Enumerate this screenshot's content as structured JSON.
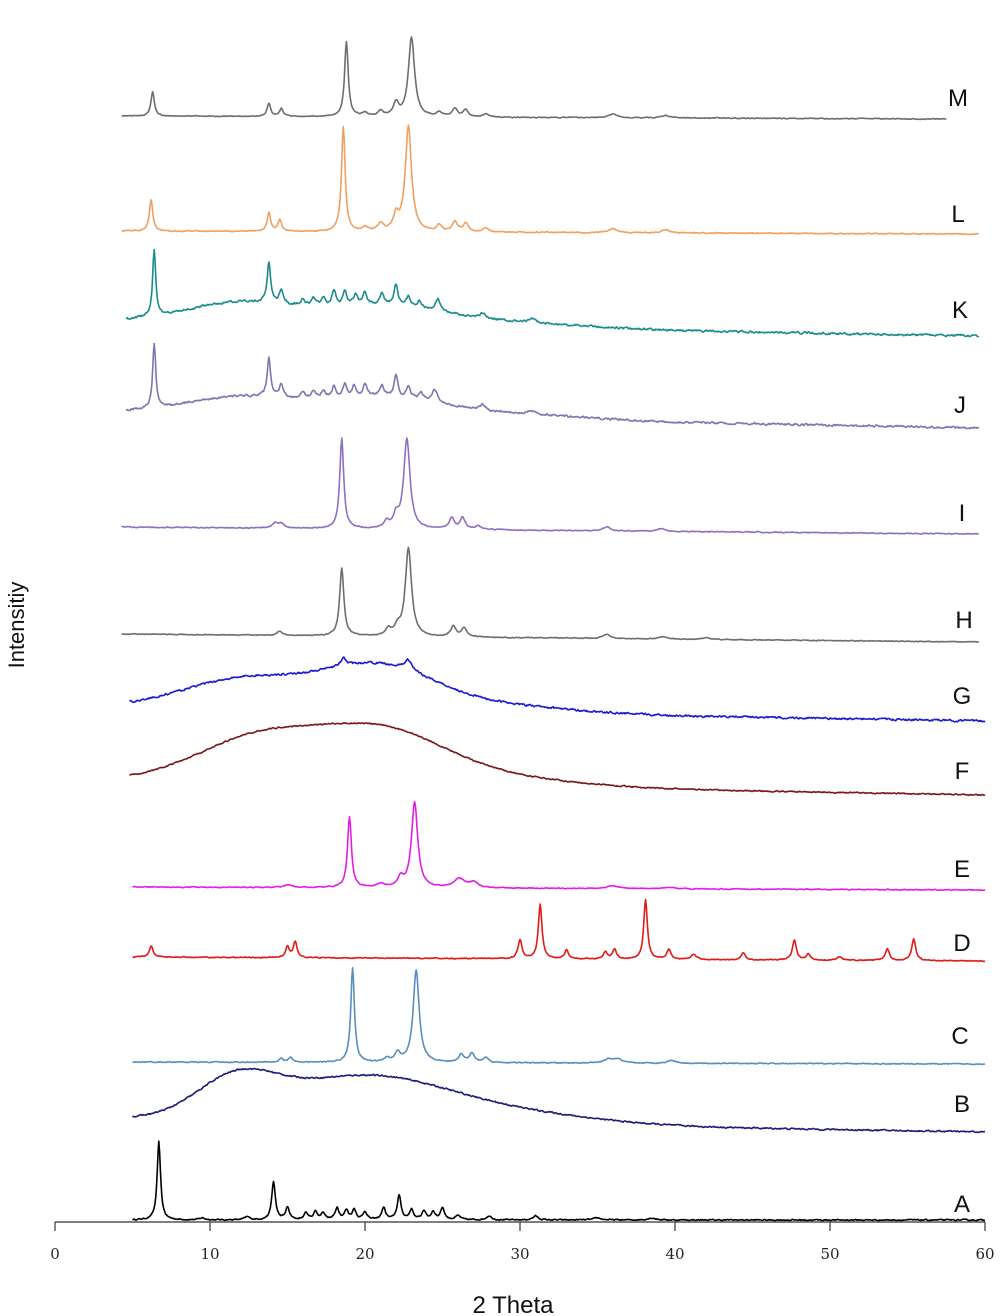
{
  "chart_data": {
    "type": "line",
    "title": "",
    "xlabel": "2 Theta",
    "ylabel": "Intensitiy",
    "xlim": [
      0,
      60
    ],
    "xticks": [
      "0",
      "10",
      "20",
      "30",
      "40",
      "50",
      "60"
    ],
    "grid": false,
    "legend": "none",
    "series": [
      {
        "name": "A",
        "color": "#000000",
        "baseline": "flat",
        "noise": 0.5,
        "bumps": [],
        "peaks": [
          [
            6.7,
            78,
            0.13
          ],
          [
            9.5,
            2,
            0.2
          ],
          [
            12.4,
            3,
            0.2
          ],
          [
            14.1,
            38,
            0.14
          ],
          [
            15.0,
            12,
            0.15
          ],
          [
            16.2,
            7,
            0.15
          ],
          [
            16.8,
            8,
            0.15
          ],
          [
            17.3,
            7,
            0.15
          ],
          [
            18.2,
            12,
            0.15
          ],
          [
            18.8,
            9,
            0.15
          ],
          [
            19.3,
            10,
            0.15
          ],
          [
            20.0,
            8,
            0.15
          ],
          [
            21.2,
            12,
            0.15
          ],
          [
            22.2,
            24,
            0.15
          ],
          [
            23.0,
            10,
            0.15
          ],
          [
            23.8,
            9,
            0.15
          ],
          [
            24.4,
            8,
            0.15
          ],
          [
            25.0,
            12,
            0.15
          ],
          [
            26.0,
            4,
            0.2
          ],
          [
            28.0,
            4,
            0.2
          ],
          [
            31.0,
            4,
            0.2
          ],
          [
            35.0,
            2,
            0.3
          ],
          [
            38.5,
            2,
            0.3
          ]
        ]
      },
      {
        "name": "B",
        "color": "#1c1c7a",
        "baseline": "sloped",
        "noise": 0.6,
        "peaks": [],
        "bumps": [
          [
            11.7,
            40,
            2.6
          ],
          [
            16.5,
            12,
            3.5
          ],
          [
            21.0,
            37,
            4.6
          ],
          [
            29.0,
            12,
            5.5
          ]
        ]
      },
      {
        "name": "C",
        "color": "#5b8dbf",
        "baseline": "flat",
        "noise": 0.4,
        "bumps": [],
        "peaks": [
          [
            14.6,
            4,
            0.15
          ],
          [
            15.2,
            5,
            0.15
          ],
          [
            19.2,
            95,
            0.14
          ],
          [
            21.4,
            4,
            0.2
          ],
          [
            22.1,
            9,
            0.2
          ],
          [
            23.3,
            92,
            0.23
          ],
          [
            26.2,
            8,
            0.2
          ],
          [
            26.9,
            9,
            0.2
          ],
          [
            27.8,
            5,
            0.2
          ],
          [
            35.7,
            4,
            0.3
          ],
          [
            36.3,
            4,
            0.3
          ],
          [
            39.8,
            3,
            0.3
          ]
        ]
      },
      {
        "name": "D",
        "color": "#e01919",
        "baseline": "flat",
        "noise": 0.4,
        "bumps": [],
        "peaks": [
          [
            6.2,
            11,
            0.14
          ],
          [
            15.0,
            11,
            0.14
          ],
          [
            15.5,
            16,
            0.14
          ],
          [
            30.0,
            19,
            0.15
          ],
          [
            31.3,
            55,
            0.14
          ],
          [
            33.0,
            9,
            0.15
          ],
          [
            35.5,
            7,
            0.15
          ],
          [
            36.1,
            10,
            0.15
          ],
          [
            38.1,
            60,
            0.14
          ],
          [
            39.6,
            10,
            0.15
          ],
          [
            41.2,
            5,
            0.2
          ],
          [
            44.4,
            7,
            0.15
          ],
          [
            47.7,
            20,
            0.15
          ],
          [
            48.6,
            6,
            0.15
          ],
          [
            50.6,
            3,
            0.2
          ],
          [
            53.7,
            12,
            0.15
          ],
          [
            55.4,
            22,
            0.15
          ]
        ]
      },
      {
        "name": "E",
        "color": "#e020e0",
        "baseline": "flat",
        "noise": 0.4,
        "bumps": [],
        "peaks": [
          [
            15.0,
            3,
            0.3
          ],
          [
            19.0,
            78,
            0.15
          ],
          [
            21.0,
            4,
            0.3
          ],
          [
            22.3,
            10,
            0.2
          ],
          [
            23.2,
            95,
            0.24
          ],
          [
            26.1,
            10,
            0.4
          ],
          [
            27.0,
            6,
            0.35
          ],
          [
            36.0,
            3,
            0.5
          ],
          [
            39.7,
            2,
            0.4
          ]
        ]
      },
      {
        "name": "F",
        "color": "#7a1818",
        "baseline": "sloped",
        "noise": 0.5,
        "peaks": [],
        "bumps": [
          [
            13.2,
            44,
            4.0
          ],
          [
            21.0,
            48,
            4.0
          ],
          [
            27.5,
            10,
            5.5
          ]
        ]
      },
      {
        "name": "G",
        "color": "#1a1ad0",
        "baseline": "sloped",
        "noise": 0.8,
        "peaks": [
          [
            18.6,
            8,
            0.2
          ],
          [
            22.8,
            10,
            0.3
          ]
        ],
        "bumps": [
          [
            12.3,
            30,
            4.0
          ],
          [
            20.8,
            42,
            3.6
          ],
          [
            28.0,
            8,
            5.0
          ]
        ]
      },
      {
        "name": "H",
        "color": "#6e6e6e",
        "baseline": "flat",
        "noise": 0.4,
        "bumps": [],
        "peaks": [
          [
            14.5,
            5,
            0.2
          ],
          [
            18.5,
            85,
            0.16
          ],
          [
            21.5,
            8,
            0.2
          ],
          [
            22.1,
            10,
            0.2
          ],
          [
            22.8,
            110,
            0.24
          ],
          [
            25.7,
            13,
            0.2
          ],
          [
            26.4,
            11,
            0.2
          ],
          [
            35.6,
            5,
            0.3
          ],
          [
            39.2,
            3,
            0.3
          ],
          [
            42.0,
            2,
            0.3
          ]
        ]
      },
      {
        "name": "I",
        "color": "#8e70c0",
        "baseline": "flat",
        "noise": 0.4,
        "bumps": [],
        "peaks": [
          [
            14.2,
            5,
            0.2
          ],
          [
            14.6,
            5,
            0.2
          ],
          [
            18.5,
            95,
            0.15
          ],
          [
            21.4,
            7,
            0.2
          ],
          [
            22.0,
            12,
            0.2
          ],
          [
            22.7,
            95,
            0.24
          ],
          [
            25.6,
            12,
            0.2
          ],
          [
            26.3,
            12,
            0.2
          ],
          [
            27.3,
            4,
            0.2
          ],
          [
            35.6,
            4,
            0.3
          ],
          [
            39.1,
            3,
            0.3
          ]
        ]
      },
      {
        "name": "J",
        "color": "#7a78ae",
        "baseline": "sloped",
        "noise": 1.0,
        "peaks": [
          [
            6.4,
            75,
            0.12
          ],
          [
            13.8,
            45,
            0.13
          ],
          [
            14.6,
            16,
            0.15
          ],
          [
            16.0,
            8,
            0.15
          ],
          [
            16.7,
            8,
            0.15
          ],
          [
            17.3,
            9,
            0.15
          ],
          [
            18.0,
            14,
            0.15
          ],
          [
            18.7,
            14,
            0.15
          ],
          [
            19.3,
            12,
            0.15
          ],
          [
            20.0,
            14,
            0.15
          ],
          [
            21.1,
            12,
            0.15
          ],
          [
            22.0,
            25,
            0.15
          ],
          [
            22.8,
            12,
            0.15
          ],
          [
            23.6,
            8,
            0.15
          ],
          [
            24.5,
            14,
            0.2
          ],
          [
            27.6,
            6,
            0.2
          ],
          [
            30.7,
            5,
            0.25
          ]
        ],
        "bumps": [
          [
            12.0,
            20,
            3.5
          ],
          [
            21.0,
            22,
            3.8
          ],
          [
            29.0,
            6,
            5.0
          ]
        ]
      },
      {
        "name": "K",
        "color": "#1a8c8c",
        "baseline": "sloped",
        "noise": 1.0,
        "peaks": [
          [
            6.4,
            78,
            0.12
          ],
          [
            13.8,
            48,
            0.13
          ],
          [
            14.6,
            16,
            0.15
          ],
          [
            16.0,
            8,
            0.15
          ],
          [
            16.7,
            9,
            0.15
          ],
          [
            17.3,
            10,
            0.15
          ],
          [
            18.0,
            18,
            0.15
          ],
          [
            18.7,
            16,
            0.15
          ],
          [
            19.4,
            12,
            0.15
          ],
          [
            20.0,
            14,
            0.15
          ],
          [
            21.1,
            12,
            0.15
          ],
          [
            22.0,
            24,
            0.15
          ],
          [
            22.8,
            12,
            0.15
          ],
          [
            23.5,
            8,
            0.15
          ],
          [
            24.7,
            14,
            0.2
          ],
          [
            27.6,
            6,
            0.2
          ],
          [
            30.8,
            5,
            0.25
          ]
        ],
        "bumps": [
          [
            12.0,
            24,
            3.5
          ],
          [
            21.0,
            22,
            3.8
          ],
          [
            29.0,
            6,
            5.0
          ]
        ]
      },
      {
        "name": "L",
        "color": "#f0a060",
        "baseline": "flat",
        "noise": 0.4,
        "bumps": [],
        "peaks": [
          [
            6.2,
            30,
            0.13
          ],
          [
            13.8,
            18,
            0.13
          ],
          [
            14.5,
            11,
            0.14
          ],
          [
            18.6,
            100,
            0.14
          ],
          [
            20.0,
            4,
            0.2
          ],
          [
            21.0,
            7,
            0.2
          ],
          [
            22.0,
            14,
            0.2
          ],
          [
            22.8,
            100,
            0.24
          ],
          [
            24.8,
            6,
            0.2
          ],
          [
            25.8,
            9,
            0.2
          ],
          [
            26.5,
            8,
            0.2
          ],
          [
            27.8,
            4,
            0.2
          ],
          [
            36.0,
            4,
            0.3
          ],
          [
            39.4,
            3,
            0.3
          ]
        ]
      },
      {
        "name": "M",
        "color": "#6e6e6e",
        "baseline": "flat",
        "noise": 0.4,
        "bumps": [],
        "peaks": [
          [
            6.3,
            28,
            0.13
          ],
          [
            13.8,
            15,
            0.13
          ],
          [
            14.6,
            9,
            0.14
          ],
          [
            18.8,
            85,
            0.14
          ],
          [
            20.0,
            4,
            0.2
          ],
          [
            21.0,
            6,
            0.2
          ],
          [
            22.0,
            14,
            0.2
          ],
          [
            23.0,
            90,
            0.24
          ],
          [
            24.8,
            5,
            0.2
          ],
          [
            25.8,
            9,
            0.2
          ],
          [
            26.5,
            8,
            0.2
          ],
          [
            27.8,
            4,
            0.2
          ],
          [
            36.0,
            4,
            0.3
          ],
          [
            39.4,
            3,
            0.3
          ]
        ]
      }
    ]
  }
}
